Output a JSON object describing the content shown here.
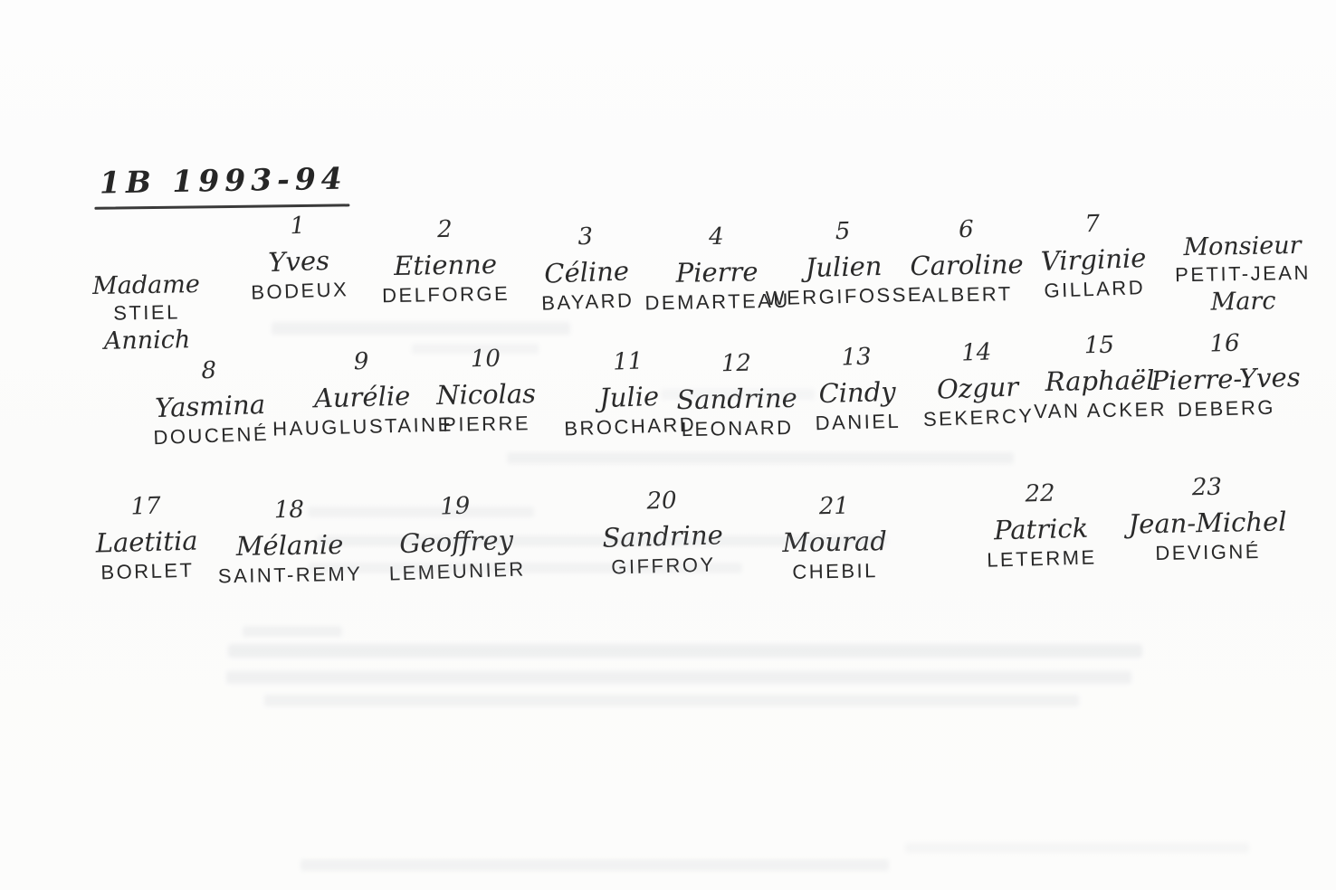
{
  "document": {
    "title": "1B  1993-94",
    "ink_color": "#2b2b2b",
    "paper_color": "#fdfdfd",
    "teachers": [
      {
        "title": "Madame",
        "last": "STIEL",
        "first": "Annich"
      },
      {
        "title": "Monsieur",
        "last": "PETIT-JEAN",
        "first": "Marc"
      }
    ],
    "students": [
      {
        "num": "1",
        "first": "Yves",
        "last": "BODEUX"
      },
      {
        "num": "2",
        "first": "Etienne",
        "last": "DELFORGE"
      },
      {
        "num": "3",
        "first": "Céline",
        "last": "BAYARD"
      },
      {
        "num": "4",
        "first": "Pierre",
        "last": "DEMARTEAU"
      },
      {
        "num": "5",
        "first": "Julien",
        "last": "WERGIFOSSE"
      },
      {
        "num": "6",
        "first": "Caroline",
        "last": "ALBERT"
      },
      {
        "num": "7",
        "first": "Virginie",
        "last": "GILLARD"
      },
      {
        "num": "8",
        "first": "Yasmina",
        "last": "DOUCENÉ"
      },
      {
        "num": "9",
        "first": "Aurélie",
        "last": "HAUGLUSTAINE"
      },
      {
        "num": "10",
        "first": "Nicolas",
        "last": "PIERRE"
      },
      {
        "num": "11",
        "first": "Julie",
        "last": "BROCHARD"
      },
      {
        "num": "12",
        "first": "Sandrine",
        "last": "LEONARD"
      },
      {
        "num": "13",
        "first": "Cindy",
        "last": "DANIEL"
      },
      {
        "num": "14",
        "first": "Ozgur",
        "last": "SEKERCY"
      },
      {
        "num": "15",
        "first": "Raphaël",
        "last": "VAN ACKER"
      },
      {
        "num": "16",
        "first": "Pierre-Yves",
        "last": "DEBERG"
      },
      {
        "num": "17",
        "first": "Laetitia",
        "last": "BORLET"
      },
      {
        "num": "18",
        "first": "Mélanie",
        "last": "SAINT-REMY"
      },
      {
        "num": "19",
        "first": "Geoffrey",
        "last": "LEMEUNIER"
      },
      {
        "num": "20",
        "first": "Sandrine",
        "last": "GIFFROY"
      },
      {
        "num": "21",
        "first": "Mourad",
        "last": "CHEBIL"
      },
      {
        "num": "22",
        "first": "Patrick",
        "last": "LETERME"
      },
      {
        "num": "23",
        "first": "Jean-Michel",
        "last": "DEVIGNÉ"
      }
    ]
  }
}
